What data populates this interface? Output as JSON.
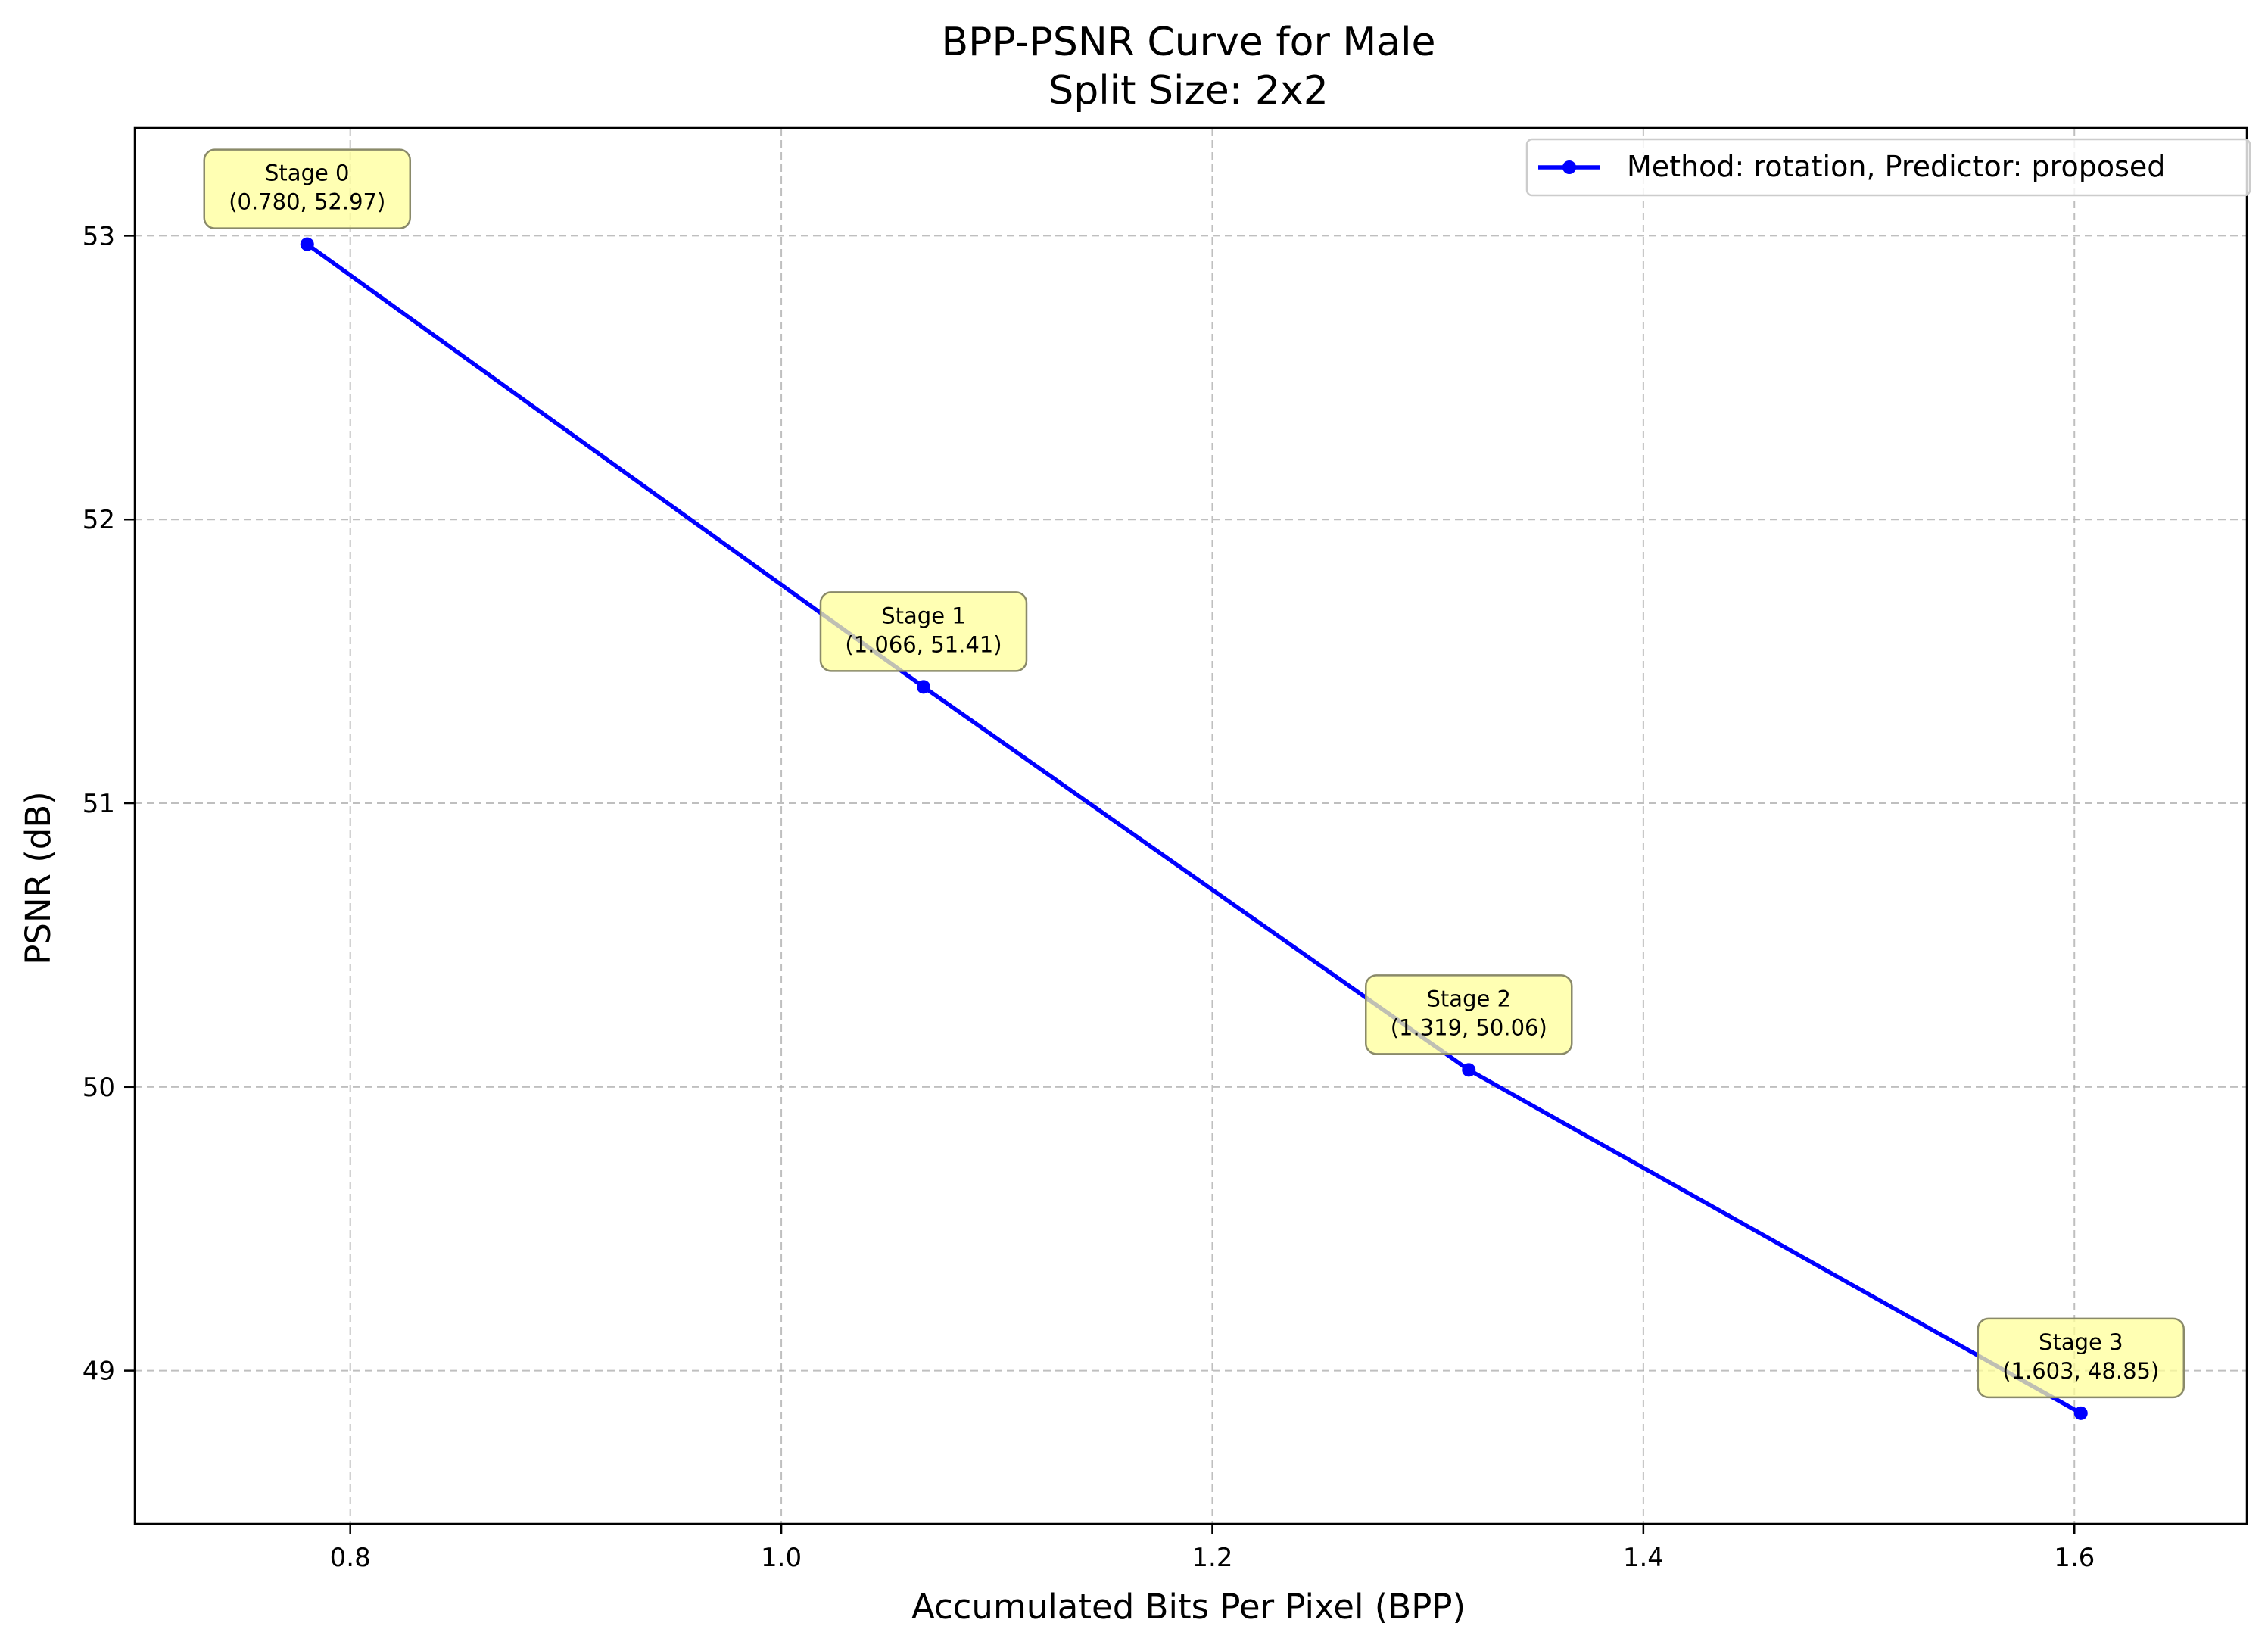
{
  "chart_data": {
    "type": "line",
    "title": "BPP-PSNR Curve for Male",
    "subtitle": "Split Size: 2x2",
    "xlabel": "Accumulated Bits Per Pixel (BPP)",
    "ylabel": "PSNR (dB)",
    "xlim": [
      0.7,
      1.68
    ],
    "ylim": [
      48.46,
      53.38
    ],
    "xticks": [
      0.8,
      1.0,
      1.2,
      1.4,
      1.6
    ],
    "xtick_labels": [
      "0.8",
      "1.0",
      "1.2",
      "1.4",
      "1.6"
    ],
    "yticks": [
      49,
      50,
      51,
      52,
      53
    ],
    "ytick_labels": [
      "49",
      "50",
      "51",
      "52",
      "53"
    ],
    "grid": true,
    "legend_position": "top-right",
    "series": [
      {
        "name": "Method: rotation, Predictor: proposed",
        "color": "#0000ff",
        "x": [
          0.78,
          1.066,
          1.319,
          1.603
        ],
        "y": [
          52.97,
          51.41,
          50.06,
          48.85
        ]
      }
    ],
    "annotations": [
      {
        "line1": "Stage 0",
        "line2": "(0.780, 52.97)"
      },
      {
        "line1": "Stage 1",
        "line2": "(1.066, 51.41)"
      },
      {
        "line1": "Stage 2",
        "line2": "(1.319, 50.06)"
      },
      {
        "line1": "Stage 3",
        "line2": "(1.603, 48.85)"
      }
    ]
  }
}
